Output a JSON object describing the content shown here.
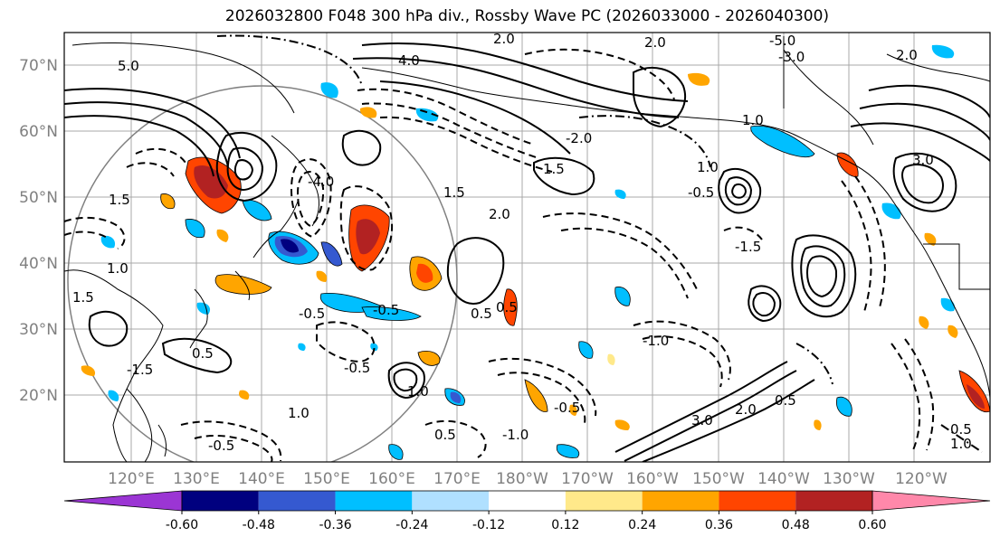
{
  "title": "2026032800 F048 300 hPa div., Rossby Wave PC (2026033000 - 2026040300)",
  "lat_labels": [
    "70°N",
    "60°N",
    "50°N",
    "40°N",
    "30°N",
    "20°N"
  ],
  "lon_labels": [
    "120°E",
    "130°E",
    "140°E",
    "150°E",
    "160°E",
    "170°E",
    "180°W",
    "170°W",
    "160°W",
    "150°W",
    "140°W",
    "130°W",
    "120°W"
  ],
  "colorbar": {
    "ticks": [
      "-0.60",
      "-0.48",
      "-0.36",
      "-0.24",
      "-0.12",
      "0.12",
      "0.24",
      "0.36",
      "0.48",
      "0.60"
    ],
    "colors": [
      "#9b35d4",
      "#00007f",
      "#3559d0",
      "#00bfff",
      "#b0e0ff",
      "#ffffff",
      "#ffe98a",
      "#ffa500",
      "#ff4500",
      "#b22222",
      "#ff88aa"
    ]
  },
  "contour_labels": [
    "5.0",
    "4.0",
    "3.0",
    "2.0",
    "1.5",
    "1.0",
    "0.5",
    "-0.5",
    "-1.0",
    "-1.5",
    "-2.0",
    "-3.0",
    "-4.0",
    "-5.0"
  ]
}
